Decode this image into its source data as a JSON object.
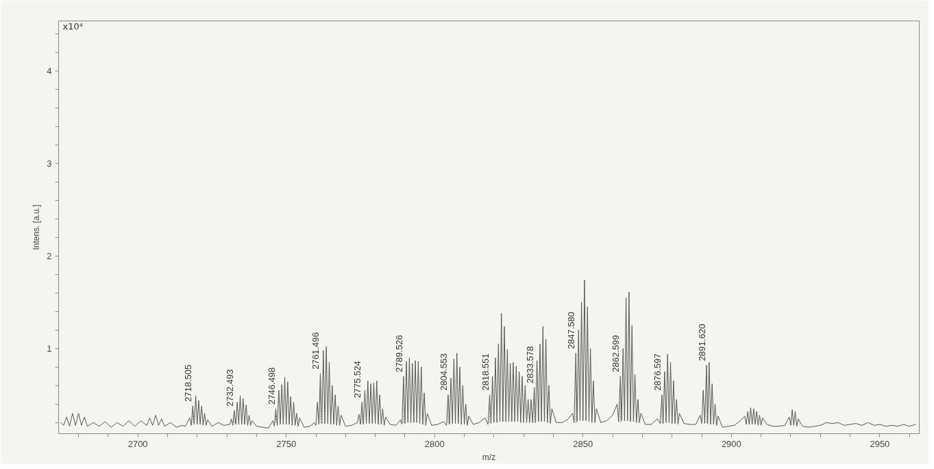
{
  "chart_data": {
    "type": "line",
    "xlabel": "m/z",
    "ylabel": "Intens. [a.u.]",
    "annotations": [
      "x10⁴",
      {
        "text": "2718.505",
        "x": 2718.505,
        "y": 0.38
      },
      {
        "text": "2732.493",
        "x": 2732.493,
        "y": 0.33
      },
      {
        "text": "2746.498",
        "x": 2746.498,
        "y": 0.35
      },
      {
        "text": "2761.496",
        "x": 2761.496,
        "y": 0.73
      },
      {
        "text": "2775.524",
        "x": 2775.524,
        "y": 0.42
      },
      {
        "text": "2789.526",
        "x": 2789.526,
        "y": 0.7
      },
      {
        "text": "2804.553",
        "x": 2804.553,
        "y": 0.5
      },
      {
        "text": "2818.551",
        "x": 2818.551,
        "y": 0.5
      },
      {
        "text": "2833.578",
        "x": 2833.578,
        "y": 0.58
      },
      {
        "text": "2847.580",
        "x": 2847.58,
        "y": 0.95
      },
      {
        "text": "2862.599",
        "x": 2862.599,
        "y": 0.7
      },
      {
        "text": "2876.597",
        "x": 2876.597,
        "y": 0.5
      },
      {
        "text": "2891.620",
        "x": 2891.62,
        "y": 0.82
      }
    ],
    "series": [
      {
        "color": "#555555",
        "x": [
          2674,
          2675,
          2676,
          2677,
          2678,
          2679,
          2680,
          2681,
          2682,
          2683,
          2685,
          2687,
          2689,
          2691,
          2693,
          2695,
          2697,
          2699,
          2701,
          2703,
          2704,
          2705,
          2706,
          2707,
          2708,
          2709,
          2711,
          2713,
          2715,
          2716,
          2717.5,
          2718,
          2718.505,
          2719,
          2719.5,
          2720,
          2720.5,
          2721,
          2721.5,
          2722,
          2722.5,
          2723,
          2723.5,
          2725,
          2727,
          2729,
          2731,
          2731.5,
          2732,
          2732.493,
          2733,
          2733.5,
          2734,
          2734.5,
          2735,
          2735.5,
          2736,
          2736.5,
          2737,
          2737.5,
          2738,
          2738.5,
          2740,
          2742,
          2744,
          2745.5,
          2746,
          2746.498,
          2747,
          2747.5,
          2748,
          2748.5,
          2749,
          2749.5,
          2750,
          2750.5,
          2751,
          2751.5,
          2752,
          2752.5,
          2753,
          2753.5,
          2754,
          2754.5,
          2756,
          2758,
          2759.5,
          2760,
          2760.5,
          2761,
          2761.496,
          2762,
          2762.5,
          2763,
          2763.5,
          2764,
          2764.5,
          2765,
          2765.5,
          2766,
          2766.5,
          2767,
          2767.5,
          2768,
          2768.5,
          2770,
          2772,
          2774,
          2774.5,
          2775,
          2775.524,
          2776,
          2776.5,
          2777,
          2777.5,
          2778,
          2778.5,
          2779,
          2779.5,
          2780,
          2780.5,
          2781,
          2781.5,
          2782,
          2782.5,
          2783,
          2783.5,
          2785,
          2787,
          2788.5,
          2789,
          2789.526,
          2790,
          2790.5,
          2791,
          2791.5,
          2792,
          2792.5,
          2793,
          2793.5,
          2794,
          2794.5,
          2795,
          2795.5,
          2796,
          2796.5,
          2797,
          2797.5,
          2799,
          2801,
          2803,
          2804,
          2804.553,
          2805,
          2805.5,
          2806,
          2806.5,
          2807,
          2807.5,
          2808,
          2808.5,
          2809,
          2809.5,
          2810,
          2810.5,
          2811,
          2811.5,
          2813,
          2815,
          2817,
          2818,
          2818.551,
          2819,
          2819.5,
          2820,
          2820.5,
          2821,
          2821.5,
          2822,
          2822.5,
          2823,
          2823.5,
          2824,
          2824.5,
          2825,
          2825.5,
          2826,
          2826.5,
          2827,
          2827.5,
          2828,
          2828.5,
          2829,
          2829.5,
          2830,
          2830.5,
          2831,
          2831.5,
          2832,
          2832.5,
          2833,
          2833.578,
          2834,
          2834.5,
          2835,
          2835.5,
          2836,
          2836.5,
          2837,
          2837.5,
          2838,
          2838.5,
          2839,
          2839.5,
          2841,
          2843,
          2845,
          2846.5,
          2847,
          2847.58,
          2848,
          2848.5,
          2849,
          2849.5,
          2850,
          2850.5,
          2851,
          2851.5,
          2852,
          2852.5,
          2853,
          2853.5,
          2854,
          2854.5,
          2856,
          2858,
          2860,
          2861.5,
          2862,
          2862.599,
          2863,
          2863.5,
          2864,
          2864.5,
          2865,
          2865.5,
          2866,
          2866.5,
          2867,
          2867.5,
          2868,
          2868.5,
          2869,
          2869.5,
          2871,
          2873,
          2875,
          2876,
          2876.597,
          2877,
          2877.5,
          2878,
          2878.5,
          2879,
          2879.5,
          2880,
          2880.5,
          2881,
          2881.5,
          2882,
          2882.5,
          2884,
          2886,
          2888,
          2889.5,
          2890,
          2890.5,
          2891,
          2891.62,
          2892,
          2892.5,
          2893,
          2893.5,
          2894,
          2894.5,
          2895,
          2895.5,
          2897,
          2899,
          2901,
          2903,
          2904.5,
          2905,
          2905.5,
          2906,
          2906.5,
          2907,
          2907.5,
          2908,
          2908.5,
          2909,
          2909.5,
          2910,
          2910.5,
          2912,
          2914,
          2916,
          2918,
          2919.5,
          2920,
          2920.5,
          2921,
          2921.5,
          2922,
          2922.5,
          2924,
          2926,
          2928,
          2930,
          2932,
          2934,
          2936,
          2938,
          2940,
          2942,
          2944,
          2946,
          2948,
          2950,
          2952,
          2954,
          2956,
          2958,
          2960,
          2962
        ],
        "values": [
          0.2,
          0.17,
          0.26,
          0.16,
          0.3,
          0.17,
          0.3,
          0.17,
          0.26,
          0.16,
          0.2,
          0.16,
          0.21,
          0.15,
          0.2,
          0.16,
          0.22,
          0.16,
          0.22,
          0.17,
          0.25,
          0.17,
          0.28,
          0.17,
          0.24,
          0.16,
          0.2,
          0.15,
          0.17,
          0.16,
          0.25,
          0.17,
          0.38,
          0.18,
          0.49,
          0.18,
          0.44,
          0.18,
          0.38,
          0.17,
          0.3,
          0.17,
          0.23,
          0.16,
          0.2,
          0.17,
          0.18,
          0.24,
          0.17,
          0.33,
          0.18,
          0.42,
          0.18,
          0.49,
          0.18,
          0.46,
          0.18,
          0.39,
          0.17,
          0.28,
          0.17,
          0.22,
          0.16,
          0.15,
          0.14,
          0.22,
          0.16,
          0.35,
          0.17,
          0.55,
          0.18,
          0.61,
          0.18,
          0.69,
          0.18,
          0.64,
          0.18,
          0.48,
          0.17,
          0.42,
          0.17,
          0.3,
          0.16,
          0.25,
          0.15,
          0.16,
          0.2,
          0.17,
          0.42,
          0.18,
          0.73,
          0.19,
          0.98,
          0.19,
          1.02,
          0.19,
          0.85,
          0.18,
          0.6,
          0.18,
          0.5,
          0.17,
          0.38,
          0.17,
          0.28,
          0.16,
          0.17,
          0.2,
          0.29,
          0.18,
          0.42,
          0.18,
          0.55,
          0.19,
          0.65,
          0.19,
          0.62,
          0.19,
          0.63,
          0.19,
          0.65,
          0.18,
          0.5,
          0.18,
          0.35,
          0.17,
          0.26,
          0.18,
          0.17,
          0.23,
          0.18,
          0.7,
          0.19,
          0.86,
          0.2,
          0.9,
          0.2,
          0.84,
          0.2,
          0.87,
          0.2,
          0.86,
          0.19,
          0.8,
          0.18,
          0.52,
          0.17,
          0.3,
          0.17,
          0.18,
          0.21,
          0.17,
          0.5,
          0.18,
          0.68,
          0.19,
          0.89,
          0.19,
          0.95,
          0.19,
          0.8,
          0.18,
          0.6,
          0.18,
          0.4,
          0.17,
          0.27,
          0.18,
          0.2,
          0.25,
          0.18,
          0.5,
          0.19,
          0.7,
          0.2,
          0.9,
          0.2,
          1.05,
          0.21,
          1.38,
          0.21,
          1.24,
          0.21,
          0.99,
          0.21,
          0.84,
          0.21,
          0.85,
          0.21,
          0.81,
          0.21,
          0.75,
          0.2,
          0.7,
          0.2,
          0.6,
          0.2,
          0.45,
          0.2,
          0.45,
          0.2,
          0.58,
          0.2,
          0.87,
          0.21,
          1.05,
          0.21,
          1.24,
          0.21,
          1.1,
          0.2,
          0.6,
          0.19,
          0.35,
          0.2,
          0.2,
          0.24,
          0.3,
          0.2,
          0.95,
          0.21,
          1.2,
          0.22,
          1.5,
          0.22,
          1.74,
          0.22,
          1.45,
          0.21,
          1.0,
          0.2,
          0.65,
          0.2,
          0.35,
          0.2,
          0.22,
          0.28,
          0.4,
          0.21,
          0.7,
          0.22,
          1.0,
          0.22,
          1.55,
          0.22,
          1.61,
          0.21,
          1.25,
          0.21,
          0.72,
          0.2,
          0.45,
          0.2,
          0.3,
          0.18,
          0.18,
          0.24,
          0.19,
          0.5,
          0.19,
          0.75,
          0.2,
          0.94,
          0.2,
          0.85,
          0.19,
          0.65,
          0.19,
          0.45,
          0.18,
          0.3,
          0.19,
          0.18,
          0.18,
          0.28,
          0.19,
          0.55,
          0.19,
          0.82,
          0.19,
          0.85,
          0.18,
          0.62,
          0.18,
          0.4,
          0.17,
          0.27,
          0.15,
          0.16,
          0.17,
          0.22,
          0.27,
          0.18,
          0.32,
          0.18,
          0.36,
          0.18,
          0.35,
          0.18,
          0.32,
          0.17,
          0.28,
          0.17,
          0.25,
          0.18,
          0.16,
          0.16,
          0.17,
          0.26,
          0.17,
          0.34,
          0.17,
          0.32,
          0.16,
          0.24,
          0.16,
          0.15,
          0.16,
          0.17,
          0.2,
          0.19,
          0.2,
          0.17,
          0.18,
          0.19,
          0.17,
          0.2,
          0.17,
          0.18,
          0.16,
          0.17,
          0.16,
          0.18,
          0.16,
          0.18
        ]
      }
    ],
    "xlim": [
      2673.3,
      2963.3
    ],
    "xticks": [
      {
        "value": 2680,
        "label": null
      },
      {
        "value": 2690,
        "label": null
      },
      2700,
      {
        "value": 2710,
        "label": null
      },
      {
        "value": 2720,
        "label": null
      },
      {
        "value": 2730,
        "label": null
      },
      {
        "value": 2740,
        "label": null
      },
      2750,
      {
        "value": 2760,
        "label": null
      },
      {
        "value": 2770,
        "label": null
      },
      {
        "value": 2780,
        "label": null
      },
      {
        "value": 2790,
        "label": null
      },
      2800,
      {
        "value": 2810,
        "label": null
      },
      {
        "value": 2820,
        "label": null
      },
      {
        "value": 2830,
        "label": null
      },
      {
        "value": 2840,
        "label": null
      },
      2850,
      {
        "value": 2860,
        "label": null
      },
      {
        "value": 2870,
        "label": null
      },
      {
        "value": 2880,
        "label": null
      },
      {
        "value": 2890,
        "label": null
      },
      2900,
      {
        "value": 2910,
        "label": null
      },
      {
        "value": 2920,
        "label": null
      },
      {
        "value": 2930,
        "label": null
      },
      {
        "value": 2940,
        "label": null
      },
      2950,
      {
        "value": 2960,
        "label": null
      }
    ],
    "ylim": [
      0.08,
      4.54
    ],
    "yticks": [
      {
        "value": 0.2,
        "label": null
      },
      {
        "value": 0.4,
        "label": null
      },
      {
        "value": 0.6,
        "label": null
      },
      {
        "value": 0.8,
        "label": null
      },
      1,
      {
        "value": 1.2,
        "label": null
      },
      {
        "value": 1.4,
        "label": null
      },
      {
        "value": 1.6,
        "label": null
      },
      {
        "value": 1.8,
        "label": null
      },
      2,
      {
        "value": 2.2,
        "label": null
      },
      {
        "value": 2.4,
        "label": null
      },
      {
        "value": 2.6,
        "label": null
      },
      {
        "value": 2.8,
        "label": null
      },
      3,
      {
        "value": 3.2,
        "label": null
      },
      {
        "value": 3.4,
        "label": null
      },
      {
        "value": 3.6,
        "label": null
      },
      {
        "value": 3.8,
        "label": null
      },
      4,
      {
        "value": 4.2,
        "label": null
      },
      {
        "value": 4.4,
        "label": null
      }
    ],
    "grid": false,
    "marker": "none",
    "line_style": "solid"
  }
}
